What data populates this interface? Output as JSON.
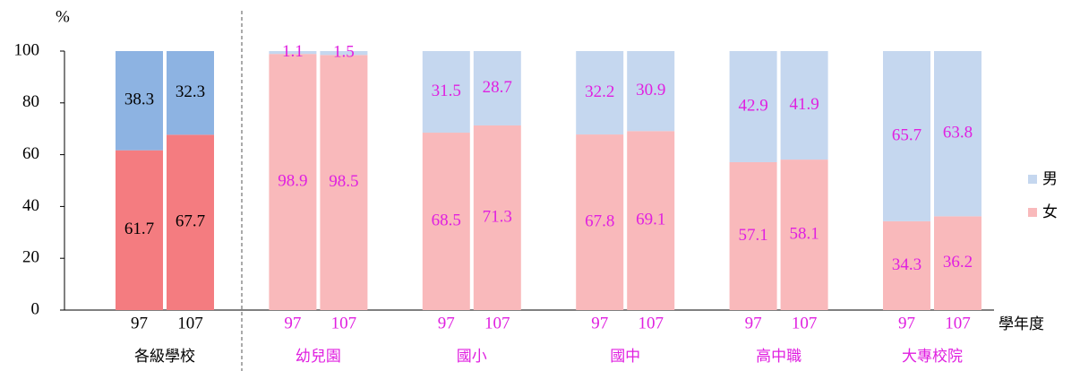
{
  "chart_data": {
    "type": "bar",
    "stacked": true,
    "y_label": "%",
    "x_label": "學年度",
    "groups": [
      "各級學校",
      "幼兒園",
      "國小",
      "國中",
      "高中職",
      "大專校院"
    ],
    "categories": [
      "97",
      "107",
      "97",
      "107",
      "97",
      "107",
      "97",
      "107",
      "97",
      "107",
      "97",
      "107"
    ],
    "series": [
      {
        "name": "女",
        "color": "#f9b9bb",
        "highlight_color": "#f47c80",
        "values": [
          61.7,
          67.7,
          98.9,
          98.5,
          68.5,
          71.3,
          67.8,
          69.1,
          57.1,
          58.1,
          34.3,
          36.2
        ]
      },
      {
        "name": "男",
        "color": "#c5d7ef",
        "highlight_color": "#8db3e2",
        "values": [
          38.3,
          32.3,
          1.1,
          1.5,
          31.5,
          28.7,
          32.2,
          30.9,
          42.9,
          41.9,
          65.7,
          63.8
        ]
      }
    ],
    "highlight_group": 0,
    "label_color": "#e020e0",
    "highlight_label_color": "#000000",
    "ylim": [
      0,
      100
    ],
    "yticks": [
      0,
      20,
      40,
      60,
      80,
      100
    ],
    "grid": false,
    "legend": "right"
  }
}
